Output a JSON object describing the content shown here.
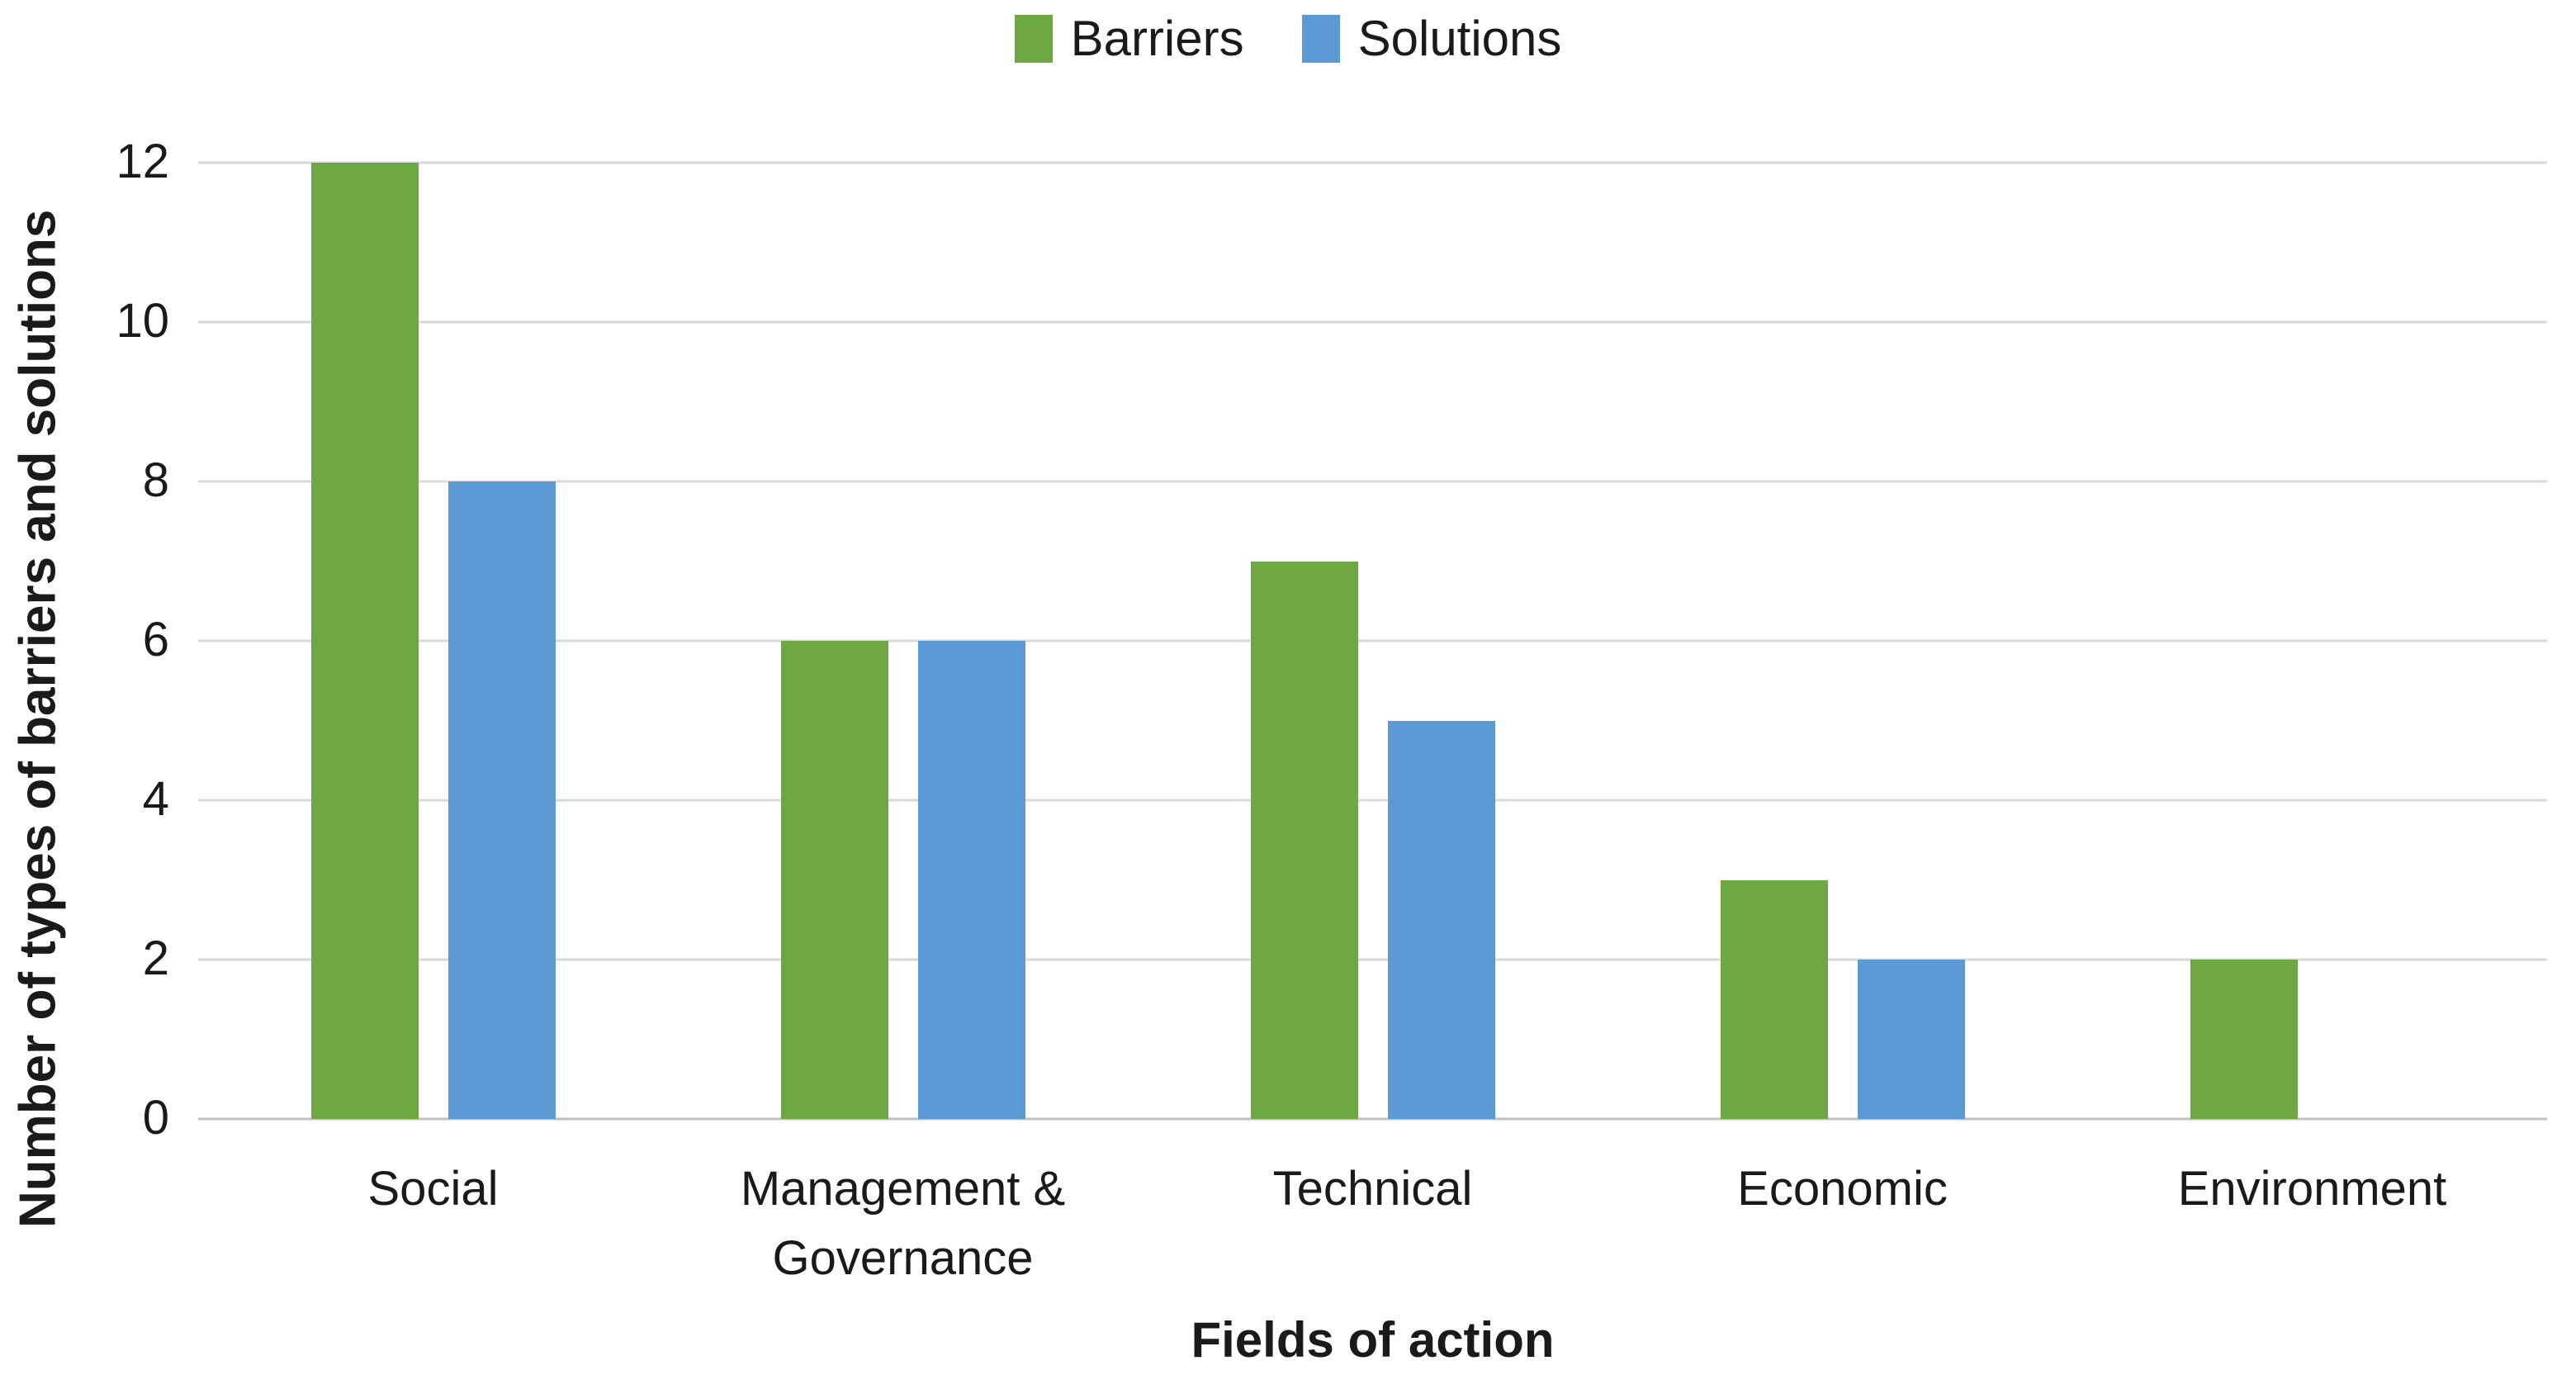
{
  "chart_data": {
    "type": "bar",
    "title": "",
    "categories": [
      "Social",
      "Management & Governance",
      "Technical",
      "Economic",
      "Environment"
    ],
    "series": [
      {
        "name": "Barriers",
        "color": "#6DA843",
        "values": [
          12,
          6,
          7,
          3,
          2
        ]
      },
      {
        "name": "Solutions",
        "color": "#5B9AD4",
        "values": [
          8,
          6,
          5,
          2,
          0
        ]
      }
    ],
    "xlabel": "Fields of action",
    "ylabel": "Number of types of barriers and solutions",
    "ylim": [
      0,
      12
    ],
    "yticks": [
      0,
      2,
      4,
      6,
      8,
      10,
      12
    ],
    "grid": "horizontal-only",
    "legend_position": "top-center",
    "colors": {
      "gridline": "#D9D9D9",
      "axis_line": "#C1C1C1",
      "text": "#1A1A1A",
      "background": "#FFFFFF"
    }
  }
}
